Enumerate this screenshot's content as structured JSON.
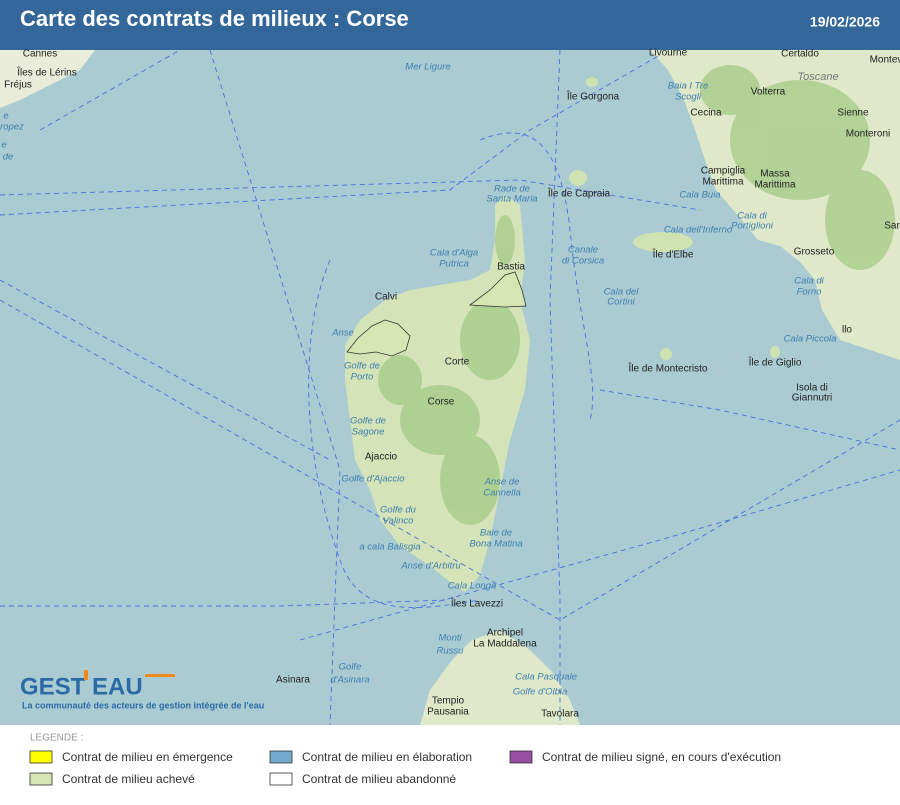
{
  "header": {
    "title": "Carte des contrats de milieux : Corse",
    "date": "19/02/2026"
  },
  "map": {
    "labels": [
      "Cannes",
      "Îles de Lérins",
      "Fréjus",
      "e",
      "ropez",
      "e",
      "de",
      "Mer Ligure",
      "Livourne",
      "Certaldo",
      "Montev",
      "Toscane",
      "Île Gorgona",
      "Baia I Tre",
      "Scogli",
      "Volterra",
      "Sienne",
      "Cecina",
      "Monteroni",
      "Rade de",
      "Santa Maria",
      "Île de Capraia",
      "Campiglia",
      "Marittima",
      "Massa",
      "Marittima",
      "Cala Buia",
      "Cala di",
      "Portiglioni",
      "Cala dell'Inferno",
      "Sar",
      "Grosseto",
      "Cala d'Alga",
      "Putrica",
      "Bastia",
      "Canale",
      "di Corsica",
      "Île d'Elbe",
      "Cala del",
      "Cortini",
      "Cala di",
      "Forno",
      "Calvi",
      "Anse",
      "Cala Piccola",
      "llo",
      "Golfe de",
      "Porto",
      "Corte",
      "Île de Montecristo",
      "Île de Giglio",
      "Isola di",
      "Giannutri",
      "Corse",
      "Golfe de",
      "Sagone",
      "Ajaccio",
      "Golfe d'Ajaccio",
      "Anse de",
      "Cannella",
      "Golfe du",
      "Valinco",
      "Baie de",
      "Bona Matina",
      "a cala Balisgia",
      "Anse d'Arbitru",
      "Cala Longa",
      "Îles Lavezzi",
      "Monti",
      "Russu",
      "Archipel",
      "La Maddalena",
      "Golfe",
      "d'Asinara",
      "Asinara",
      "Cala Pasquale",
      "Golfe d'Olbia",
      "Tempio",
      "Pausania",
      "Tavolara"
    ]
  },
  "logo": {
    "left": "GEST",
    "right": "EAU",
    "tagline": "La communauté des acteurs de gestion intégrée de l'eau"
  },
  "legend": {
    "title": "LEGENDE :",
    "items": [
      {
        "label": "Contrat de milieu en émergence",
        "color": "#ffff00"
      },
      {
        "label": "Contrat de milieu achevé",
        "color": "#d6e6b3"
      },
      {
        "label": "Contrat de milieu en élaboration",
        "color": "#74a9cf"
      },
      {
        "label": "Contrat de milieu abandonné",
        "color": "#ffffff"
      },
      {
        "label": "Contrat de milieu signé, en cours d'exécution",
        "color": "#984ea3"
      }
    ]
  }
}
